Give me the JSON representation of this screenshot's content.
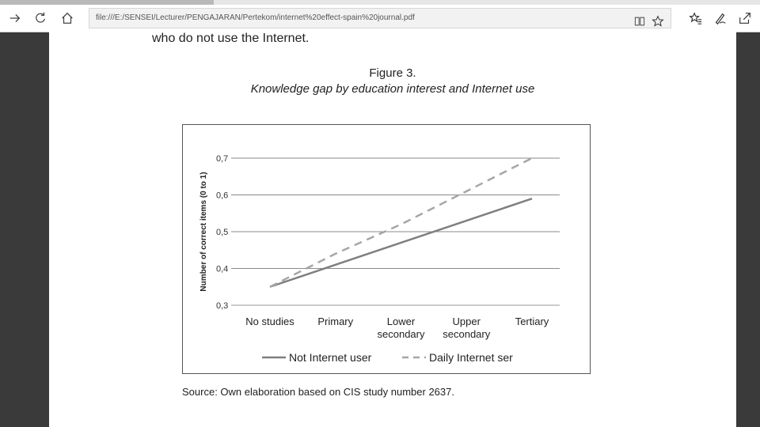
{
  "browser": {
    "address": "file:///E:/SENSEI/Lecturer/PENGAJARAN/Pertekom/internet%20effect-spain%20journal.pdf",
    "icons": [
      "forward-icon",
      "refresh-icon",
      "home-icon",
      "reading-view-icon",
      "favorite-star-icon",
      "favorites-hub-icon",
      "pen-notes-icon",
      "share-icon"
    ]
  },
  "document": {
    "lead_text": "who do not use the Internet.",
    "figure_label": "Figure 3.",
    "figure_caption": "Knowledge gap by education interest and Internet use",
    "source_note": "Source: Own elaboration based on CIS study number 2637."
  },
  "chart_data": {
    "type": "line",
    "ylabel": "Number of correct items (0 to 1)",
    "xlabel": "",
    "categories": [
      "No studies",
      "Primary",
      "Lower secondary",
      "Upper secondary",
      "Tertiary"
    ],
    "category_lines": [
      [
        "No studies"
      ],
      [
        "Primary"
      ],
      [
        "Lower",
        "secondary"
      ],
      [
        "Upper",
        "secondary"
      ],
      [
        "Tertiary"
      ]
    ],
    "ylim": [
      0.3,
      0.7
    ],
    "yticks": [
      0.3,
      0.4,
      0.5,
      0.6,
      0.7
    ],
    "ytick_labels": [
      "0,3",
      "0,4",
      "0,5",
      "0,6",
      "0,7"
    ],
    "grid": true,
    "legend_position": "bottom",
    "series": [
      {
        "name": "Not Internet user",
        "values": [
          0.35,
          0.41,
          0.47,
          0.53,
          0.59
        ],
        "color": "#7f7f7f",
        "dash": "solid"
      },
      {
        "name": "Daily Internet ser",
        "values": [
          0.35,
          0.44,
          0.52,
          0.61,
          0.7
        ],
        "color": "#a6a6a6",
        "dash": "dashed"
      }
    ]
  }
}
